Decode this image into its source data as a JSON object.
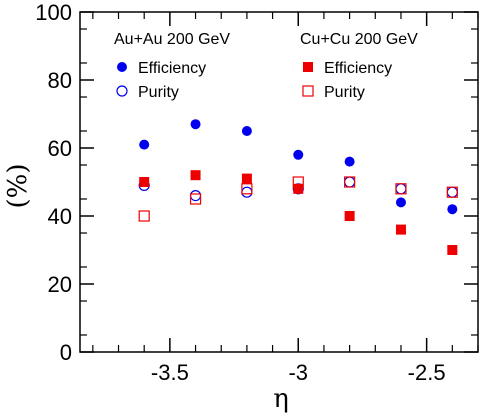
{
  "chart_data": {
    "type": "scatter",
    "xlabel": "η",
    "ylabel": "(%)",
    "xlim": [
      -3.85,
      -2.3
    ],
    "ylim": [
      0,
      100
    ],
    "x_ticks": [
      -3.5,
      -3,
      -2.5
    ],
    "x_tick_labels": [
      "-3.5",
      "-3",
      "-2.5"
    ],
    "y_ticks": [
      0,
      20,
      40,
      60,
      80,
      100
    ],
    "y_tick_labels": [
      "0",
      "20",
      "40",
      "60",
      "80",
      "100"
    ],
    "legend_groups": [
      {
        "title": "Au+Au 200 GeV",
        "entries": [
          "Efficiency",
          "Purity"
        ]
      },
      {
        "title": "Cu+Cu 200 GeV",
        "entries": [
          "Efficiency",
          "Purity"
        ]
      }
    ],
    "series": [
      {
        "name": "Efficiency",
        "group": "Au+Au 200 GeV",
        "marker": "filled-circle",
        "color": "#0000ee",
        "x": [
          -3.6,
          -3.4,
          -3.2,
          -3.0,
          -2.8,
          -2.6,
          -2.4
        ],
        "y": [
          61,
          67,
          65,
          58,
          56,
          44,
          42
        ]
      },
      {
        "name": "Purity",
        "group": "Au+Au 200 GeV",
        "marker": "open-circle",
        "color": "#0000ee",
        "x": [
          -3.6,
          -3.4,
          -3.2,
          -3.0,
          -2.8,
          -2.6,
          -2.4
        ],
        "y": [
          49,
          46,
          47,
          48,
          50,
          48,
          47
        ]
      },
      {
        "name": "Efficiency",
        "group": "Cu+Cu 200 GeV",
        "marker": "filled-square",
        "color": "#ee0000",
        "x": [
          -3.6,
          -3.4,
          -3.2,
          -3.0,
          -2.8,
          -2.6,
          -2.4
        ],
        "y": [
          50,
          52,
          51,
          48,
          40,
          36,
          30
        ]
      },
      {
        "name": "Purity",
        "group": "Cu+Cu 200 GeV",
        "marker": "open-square",
        "color": "#ee0000",
        "x": [
          -3.6,
          -3.4,
          -3.2,
          -3.0,
          -2.8,
          -2.6,
          -2.4
        ],
        "y": [
          40,
          45,
          48,
          50,
          50,
          48,
          47
        ]
      }
    ]
  }
}
